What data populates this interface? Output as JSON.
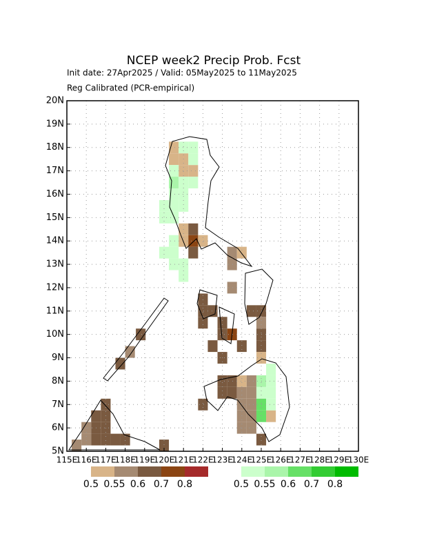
{
  "chart_data": {
    "type": "gridmap",
    "title": "NCEP week2 Precip Prob. Fcst",
    "subtitle": [
      "Init date: 27Apr2025 / Valid: 05May2025 to 11May2025",
      "Reg Calibrated (PCR-empirical)"
    ],
    "xlim": [
      115,
      130
    ],
    "ylim": [
      5,
      20
    ],
    "grid": true,
    "xticks": [
      {
        "value": 115,
        "label": "115E"
      },
      {
        "value": 116,
        "label": "116E"
      },
      {
        "value": 117,
        "label": "117E"
      },
      {
        "value": 118,
        "label": "118E"
      },
      {
        "value": 119,
        "label": "119E"
      },
      {
        "value": 120,
        "label": "120E"
      },
      {
        "value": 121,
        "label": "121E"
      },
      {
        "value": 122,
        "label": "122E"
      },
      {
        "value": 123,
        "label": "123E"
      },
      {
        "value": 124,
        "label": "124E"
      },
      {
        "value": 125,
        "label": "125E"
      },
      {
        "value": 126,
        "label": "126E"
      },
      {
        "value": 127,
        "label": "127E"
      },
      {
        "value": 128,
        "label": "128E"
      },
      {
        "value": 129,
        "label": "129E"
      },
      {
        "value": 130,
        "label": "130E"
      }
    ],
    "yticks": [
      {
        "value": 5,
        "label": "5N"
      },
      {
        "value": 6,
        "label": "6N"
      },
      {
        "value": 7,
        "label": "7N"
      },
      {
        "value": 8,
        "label": "8N"
      },
      {
        "value": 9,
        "label": "9N"
      },
      {
        "value": 10,
        "label": "10N"
      },
      {
        "value": 11,
        "label": "11N"
      },
      {
        "value": 12,
        "label": "12N"
      },
      {
        "value": 13,
        "label": "13N"
      },
      {
        "value": 14,
        "label": "14N"
      },
      {
        "value": 15,
        "label": "15N"
      },
      {
        "value": 16,
        "label": "16N"
      },
      {
        "value": 17,
        "label": "17N"
      },
      {
        "value": 18,
        "label": "18N"
      },
      {
        "value": 19,
        "label": "19N"
      },
      {
        "value": 20,
        "label": "20N"
      }
    ],
    "dry_levels": [
      0.5,
      0.55,
      0.6,
      0.7,
      0.8
    ],
    "dry_colors": [
      "#d8b488",
      "#a58a72",
      "#7a5a40",
      "#8b4513",
      "#a52a2a"
    ],
    "wet_levels": [
      0.5,
      0.55,
      0.6,
      0.7,
      0.8
    ],
    "wet_colors": [
      "#ccffcc",
      "#aaf5aa",
      "#66e066",
      "#33cc33",
      "#00bb00"
    ],
    "dry": [
      {
        "lon": 120.5,
        "lat": 18,
        "p": 0.5
      },
      {
        "lon": 120.5,
        "lat": 17.5,
        "p": 0.5
      },
      {
        "lon": 121,
        "lat": 17.5,
        "p": 0.5
      },
      {
        "lon": 121,
        "lat": 17,
        "p": 0.5
      },
      {
        "lon": 121.5,
        "lat": 17,
        "p": 0.5
      },
      {
        "lon": 121,
        "lat": 14.5,
        "p": 0.5
      },
      {
        "lon": 121.5,
        "lat": 14.5,
        "p": 0.6
      },
      {
        "lon": 121,
        "lat": 14,
        "p": 0.5
      },
      {
        "lon": 121.5,
        "lat": 14,
        "p": 0.7
      },
      {
        "lon": 122,
        "lat": 14,
        "p": 0.5
      },
      {
        "lon": 121.5,
        "lat": 13.5,
        "p": 0.6
      },
      {
        "lon": 123.5,
        "lat": 13.5,
        "p": 0.55
      },
      {
        "lon": 124,
        "lat": 13.5,
        "p": 0.5
      },
      {
        "lon": 123.5,
        "lat": 13,
        "p": 0.55
      },
      {
        "lon": 123.5,
        "lat": 12,
        "p": 0.55
      },
      {
        "lon": 122,
        "lat": 11.5,
        "p": 0.6
      },
      {
        "lon": 122,
        "lat": 11,
        "p": 0.6
      },
      {
        "lon": 122.5,
        "lat": 11,
        "p": 0.6
      },
      {
        "lon": 122,
        "lat": 10.5,
        "p": 0.6
      },
      {
        "lon": 124.5,
        "lat": 11,
        "p": 0.6
      },
      {
        "lon": 125,
        "lat": 11,
        "p": 0.6
      },
      {
        "lon": 123,
        "lat": 10.5,
        "p": 0.6
      },
      {
        "lon": 123.5,
        "lat": 10,
        "p": 0.7
      },
      {
        "lon": 123,
        "lat": 10,
        "p": 0.6
      },
      {
        "lon": 125,
        "lat": 10.5,
        "p": 0.55
      },
      {
        "lon": 125,
        "lat": 10,
        "p": 0.6
      },
      {
        "lon": 125,
        "lat": 9.5,
        "p": 0.6
      },
      {
        "lon": 122.5,
        "lat": 9.5,
        "p": 0.6
      },
      {
        "lon": 124,
        "lat": 9.5,
        "p": 0.6
      },
      {
        "lon": 123,
        "lat": 9,
        "p": 0.6
      },
      {
        "lon": 118.8,
        "lat": 10,
        "p": 0.6
      },
      {
        "lon": 118.25,
        "lat": 9.25,
        "p": 0.55
      },
      {
        "lon": 117.75,
        "lat": 8.75,
        "p": 0.6
      },
      {
        "lon": 125,
        "lat": 9,
        "p": 0.5
      },
      {
        "lon": 123,
        "lat": 8,
        "p": 0.6
      },
      {
        "lon": 123.5,
        "lat": 8,
        "p": 0.6
      },
      {
        "lon": 124,
        "lat": 8,
        "p": 0.5
      },
      {
        "lon": 124.5,
        "lat": 8,
        "p": 0.55
      },
      {
        "lon": 123,
        "lat": 7.5,
        "p": 0.6
      },
      {
        "lon": 123.5,
        "lat": 7.5,
        "p": 0.6
      },
      {
        "lon": 124,
        "lat": 7.5,
        "p": 0.55
      },
      {
        "lon": 124.5,
        "lat": 7.5,
        "p": 0.55
      },
      {
        "lon": 122,
        "lat": 7,
        "p": 0.6
      },
      {
        "lon": 124,
        "lat": 7,
        "p": 0.55
      },
      {
        "lon": 124.5,
        "lat": 7,
        "p": 0.55
      },
      {
        "lon": 124,
        "lat": 6.5,
        "p": 0.55
      },
      {
        "lon": 124.5,
        "lat": 6.5,
        "p": 0.55
      },
      {
        "lon": 125.5,
        "lat": 6.5,
        "p": 0.5
      },
      {
        "lon": 124,
        "lat": 6,
        "p": 0.55
      },
      {
        "lon": 124.5,
        "lat": 6,
        "p": 0.55
      },
      {
        "lon": 125,
        "lat": 5.5,
        "p": 0.6
      },
      {
        "lon": 117,
        "lat": 7,
        "p": 0.6
      },
      {
        "lon": 116.5,
        "lat": 6.5,
        "p": 0.6
      },
      {
        "lon": 117,
        "lat": 6.5,
        "p": 0.6
      },
      {
        "lon": 116,
        "lat": 6,
        "p": 0.55
      },
      {
        "lon": 116.5,
        "lat": 6,
        "p": 0.6
      },
      {
        "lon": 117,
        "lat": 6,
        "p": 0.6
      },
      {
        "lon": 116,
        "lat": 5.5,
        "p": 0.55
      },
      {
        "lon": 116.5,
        "lat": 5.5,
        "p": 0.6
      },
      {
        "lon": 117,
        "lat": 5.5,
        "p": 0.6
      },
      {
        "lon": 117.5,
        "lat": 5.5,
        "p": 0.6
      },
      {
        "lon": 118,
        "lat": 5.5,
        "p": 0.6
      },
      {
        "lon": 115.5,
        "lat": 5.25,
        "p": 0.55
      },
      {
        "lon": 120,
        "lat": 5.25,
        "p": 0.6
      }
    ],
    "wet": [
      {
        "lon": 121,
        "lat": 18,
        "p": 0.5
      },
      {
        "lon": 121.5,
        "lat": 18,
        "p": 0.5
      },
      {
        "lon": 121.5,
        "lat": 17.5,
        "p": 0.5
      },
      {
        "lon": 120.5,
        "lat": 17,
        "p": 0.5
      },
      {
        "lon": 120.5,
        "lat": 16.5,
        "p": 0.55
      },
      {
        "lon": 121,
        "lat": 16.5,
        "p": 0.5
      },
      {
        "lon": 121.5,
        "lat": 16.5,
        "p": 0.5
      },
      {
        "lon": 120.5,
        "lat": 16,
        "p": 0.5
      },
      {
        "lon": 121,
        "lat": 16,
        "p": 0.5
      },
      {
        "lon": 120,
        "lat": 15.5,
        "p": 0.5
      },
      {
        "lon": 120.5,
        "lat": 15.5,
        "p": 0.5
      },
      {
        "lon": 121,
        "lat": 15.5,
        "p": 0.5
      },
      {
        "lon": 120,
        "lat": 15,
        "p": 0.5
      },
      {
        "lon": 120.5,
        "lat": 15,
        "p": 0.5
      },
      {
        "lon": 120.5,
        "lat": 14,
        "p": 0.5
      },
      {
        "lon": 120,
        "lat": 13.5,
        "p": 0.5
      },
      {
        "lon": 120.5,
        "lat": 13.5,
        "p": 0.5
      },
      {
        "lon": 120.5,
        "lat": 13,
        "p": 0.5
      },
      {
        "lon": 121,
        "lat": 13,
        "p": 0.5
      },
      {
        "lon": 121,
        "lat": 12.5,
        "p": 0.5
      },
      {
        "lon": 125.5,
        "lat": 8.5,
        "p": 0.5
      },
      {
        "lon": 125,
        "lat": 8,
        "p": 0.55
      },
      {
        "lon": 125.5,
        "lat": 8,
        "p": 0.5
      },
      {
        "lon": 125,
        "lat": 7.5,
        "p": 0.5
      },
      {
        "lon": 125.5,
        "lat": 7.5,
        "p": 0.5
      },
      {
        "lon": 125,
        "lat": 7,
        "p": 0.6
      },
      {
        "lon": 125.5,
        "lat": 7,
        "p": 0.5
      },
      {
        "lon": 125,
        "lat": 6.5,
        "p": 0.6
      }
    ]
  }
}
